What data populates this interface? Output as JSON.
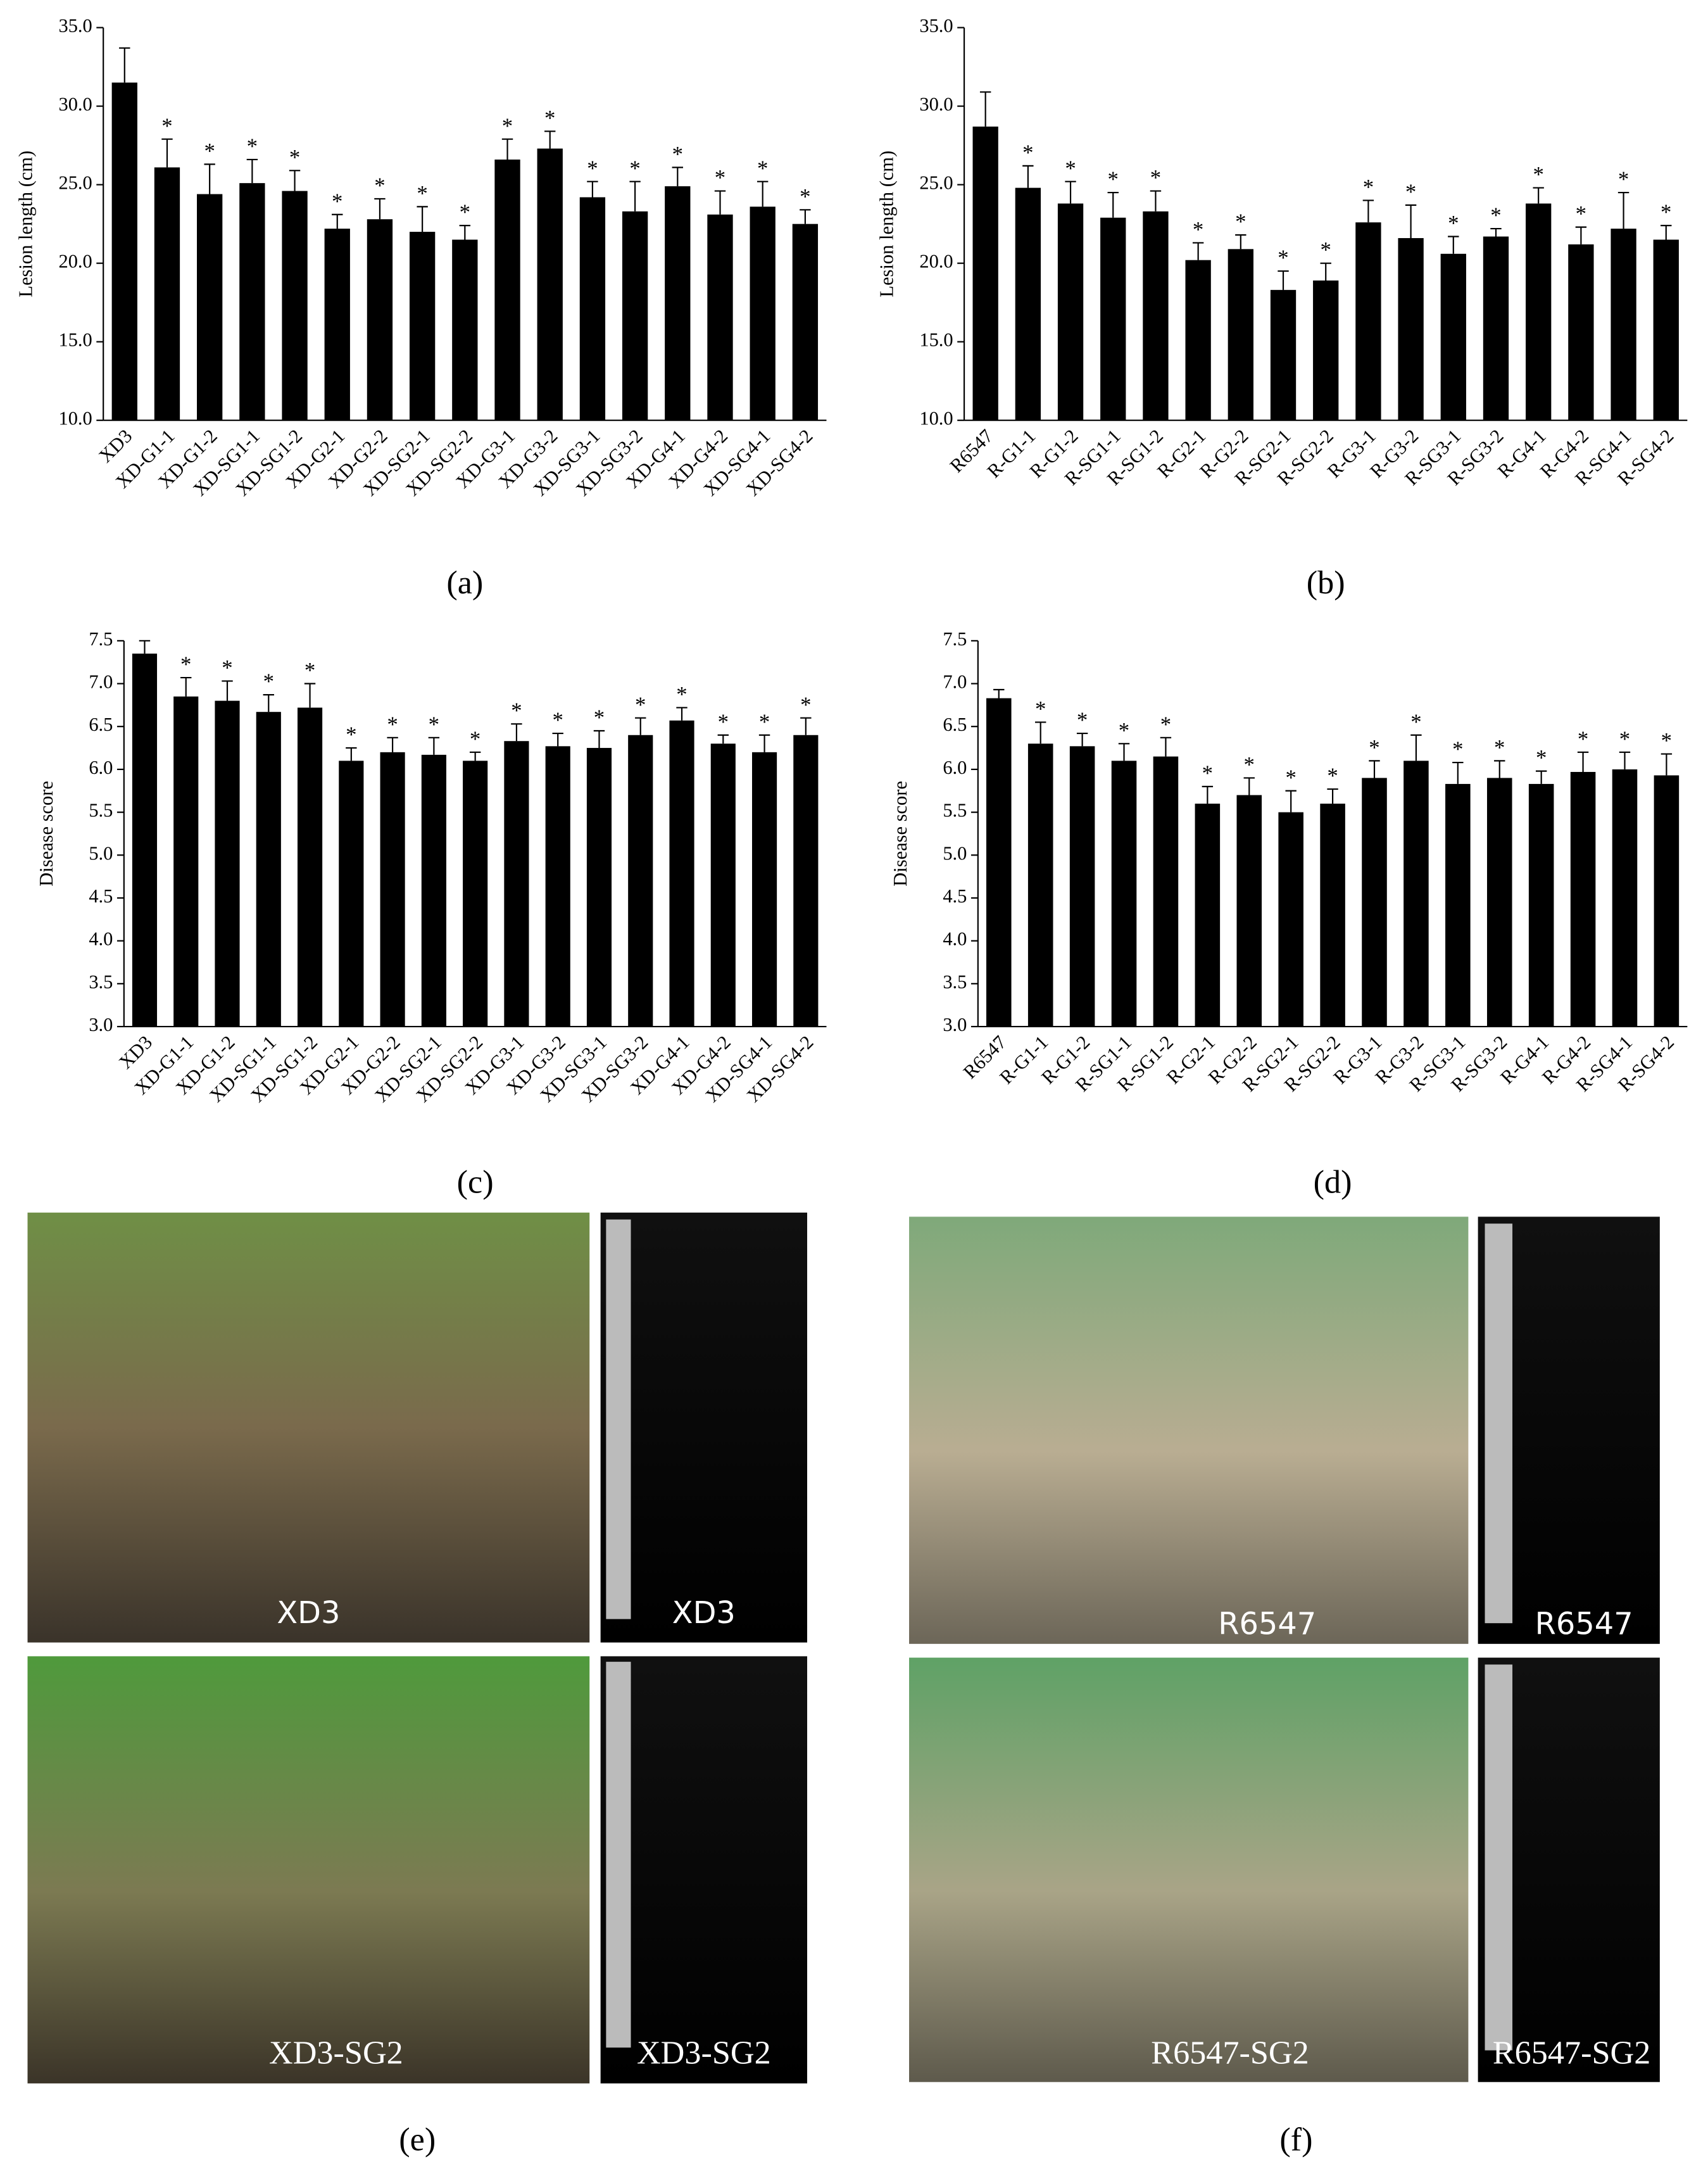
{
  "chart_data": [
    {
      "type": "bar",
      "panel_label": "(a)",
      "y_label": "Lesion length (cm)",
      "color": "#000000",
      "categories": [
        "XD3",
        "XD-G1-1",
        "XD-G1-2",
        "XD-SG1-1",
        "XD-SG1-2",
        "XD-G2-1",
        "XD-G2-2",
        "XD-SG2-1",
        "XD-SG2-2",
        "XD-G3-1",
        "XD-G3-2",
        "XD-SG3-1",
        "XD-SG3-2",
        "XD-G4-1",
        "XD-G4-2",
        "XD-SG4-1",
        "XD-SG4-2"
      ],
      "values": [
        31.5,
        26.1,
        24.4,
        25.1,
        24.6,
        22.2,
        22.8,
        22.0,
        21.5,
        26.6,
        27.3,
        24.2,
        23.3,
        24.9,
        23.1,
        23.6,
        22.5
      ],
      "errors": [
        2.2,
        1.8,
        1.9,
        1.5,
        1.3,
        0.9,
        1.3,
        1.6,
        0.9,
        1.3,
        1.1,
        1.0,
        1.9,
        1.2,
        1.5,
        1.6,
        0.9
      ],
      "significance": [
        null,
        "*",
        "*",
        "*",
        "*",
        "*",
        "*",
        "*",
        "*",
        "*",
        "*",
        "*",
        "*",
        "*",
        "*",
        "*",
        "*"
      ],
      "ylim": [
        10,
        35
      ],
      "yticks": [
        {
          "value": 10,
          "label": "10.0"
        },
        {
          "value": 15,
          "label": "15.0"
        },
        {
          "value": 20,
          "label": "20.0"
        },
        {
          "value": 25,
          "label": "25.0"
        },
        {
          "value": 30,
          "label": "30.0"
        },
        {
          "value": 35,
          "label": "35.0"
        }
      ]
    },
    {
      "type": "bar",
      "panel_label": "(b)",
      "y_label": "Lesion length (cm)",
      "color": "#000000",
      "categories": [
        "R6547",
        "R-G1-1",
        "R-G1-2",
        "R-SG1-1",
        "R-SG1-2",
        "R-G2-1",
        "R-G2-2",
        "R-SG2-1",
        "R-SG2-2",
        "R-G3-1",
        "R-G3-2",
        "R-SG3-1",
        "R-SG3-2",
        "R-G4-1",
        "R-G4-2",
        "R-SG4-1",
        "R-SG4-2"
      ],
      "values": [
        28.7,
        24.8,
        23.8,
        22.9,
        23.3,
        20.2,
        20.9,
        18.3,
        18.9,
        22.6,
        21.6,
        20.6,
        21.7,
        23.8,
        21.2,
        22.2,
        21.5
      ],
      "errors": [
        2.2,
        1.4,
        1.4,
        1.6,
        1.3,
        1.1,
        0.9,
        1.2,
        1.1,
        1.4,
        2.1,
        1.1,
        0.5,
        1.0,
        1.1,
        2.3,
        0.9
      ],
      "significance": [
        null,
        "*",
        "*",
        "*",
        "*",
        "*",
        "*",
        "*",
        "*",
        "*",
        "*",
        "*",
        "*",
        "*",
        "*",
        "*",
        "*"
      ],
      "ylim": [
        10,
        35
      ],
      "yticks": [
        {
          "value": 10,
          "label": "10.0"
        },
        {
          "value": 15,
          "label": "15.0"
        },
        {
          "value": 20,
          "label": "20.0"
        },
        {
          "value": 25,
          "label": "25.0"
        },
        {
          "value": 30,
          "label": "30.0"
        },
        {
          "value": 35,
          "label": "35.0"
        }
      ]
    },
    {
      "type": "bar",
      "panel_label": "(c)",
      "y_label": "Disease score",
      "color": "#000000",
      "categories": [
        "XD3",
        "XD-G1-1",
        "XD-G1-2",
        "XD-SG1-1",
        "XD-SG1-2",
        "XD-G2-1",
        "XD-G2-2",
        "XD-SG2-1",
        "XD-SG2-2",
        "XD-G3-1",
        "XD-G3-2",
        "XD-SG3-1",
        "XD-SG3-2",
        "XD-G4-1",
        "XD-G4-2",
        "XD-SG4-1",
        "XD-SG4-2"
      ],
      "values": [
        7.35,
        6.85,
        6.8,
        6.67,
        6.72,
        6.1,
        6.2,
        6.17,
        6.1,
        6.33,
        6.27,
        6.25,
        6.4,
        6.57,
        6.3,
        6.2,
        6.4
      ],
      "errors": [
        0.15,
        0.22,
        0.23,
        0.2,
        0.28,
        0.15,
        0.17,
        0.2,
        0.1,
        0.2,
        0.15,
        0.2,
        0.2,
        0.15,
        0.1,
        0.2,
        0.2
      ],
      "significance": [
        null,
        "*",
        "*",
        "*",
        "*",
        "*",
        "*",
        "*",
        "*",
        "*",
        "*",
        "*",
        "*",
        "*",
        "*",
        "*",
        "*"
      ],
      "ylim": [
        3,
        7.5
      ],
      "yticks": [
        {
          "value": 3,
          "label": "3.0"
        },
        {
          "value": 3.5,
          "label": "3.5"
        },
        {
          "value": 4,
          "label": "4.0"
        },
        {
          "value": 4.5,
          "label": "4.5"
        },
        {
          "value": 5,
          "label": "5.0"
        },
        {
          "value": 5.5,
          "label": "5.5"
        },
        {
          "value": 6,
          "label": "6.0"
        },
        {
          "value": 6.5,
          "label": "6.5"
        },
        {
          "value": 7,
          "label": "7.0"
        },
        {
          "value": 7.5,
          "label": "7.5"
        }
      ]
    },
    {
      "type": "bar",
      "panel_label": "(d)",
      "y_label": "Disease score",
      "color": "#000000",
      "categories": [
        "R6547",
        "R-G1-1",
        "R-G1-2",
        "R-SG1-1",
        "R-SG1-2",
        "R-G2-1",
        "R-G2-2",
        "R-SG2-1",
        "R-SG2-2",
        "R-G3-1",
        "R-G3-2",
        "R-SG3-1",
        "R-SG3-2",
        "R-G4-1",
        "R-G4-2",
        "R-SG4-1",
        "R-SG4-2"
      ],
      "values": [
        6.83,
        6.3,
        6.27,
        6.1,
        6.15,
        5.6,
        5.7,
        5.5,
        5.6,
        5.9,
        6.1,
        5.83,
        5.9,
        5.83,
        5.97,
        6.0,
        5.93
      ],
      "errors": [
        0.1,
        0.25,
        0.15,
        0.2,
        0.22,
        0.2,
        0.2,
        0.25,
        0.17,
        0.2,
        0.3,
        0.25,
        0.2,
        0.15,
        0.23,
        0.2,
        0.25
      ],
      "significance": [
        null,
        "*",
        "*",
        "*",
        "*",
        "*",
        "*",
        "*",
        "*",
        "*",
        "*",
        "*",
        "*",
        "*",
        "*",
        "*",
        "*"
      ],
      "ylim": [
        3,
        7.5
      ],
      "yticks": [
        {
          "value": 3,
          "label": "3.0"
        },
        {
          "value": 3.5,
          "label": "3.5"
        },
        {
          "value": 4,
          "label": "4.0"
        },
        {
          "value": 4.5,
          "label": "4.5"
        },
        {
          "value": 5,
          "label": "5.0"
        },
        {
          "value": 5.5,
          "label": "5.5"
        },
        {
          "value": 6,
          "label": "6.0"
        },
        {
          "value": 6.5,
          "label": "6.5"
        },
        {
          "value": 7,
          "label": "7.0"
        },
        {
          "value": 7.5,
          "label": "7.5"
        }
      ]
    }
  ],
  "photos": [
    {
      "panel_label": "(e)",
      "labels": [
        "XD3",
        "XD3",
        "XD3-SG2",
        "XD3-SG2"
      ]
    },
    {
      "panel_label": "(f)",
      "labels": [
        "R6547",
        "R6547",
        "R6547-SG2",
        "R6547-SG2"
      ]
    }
  ]
}
